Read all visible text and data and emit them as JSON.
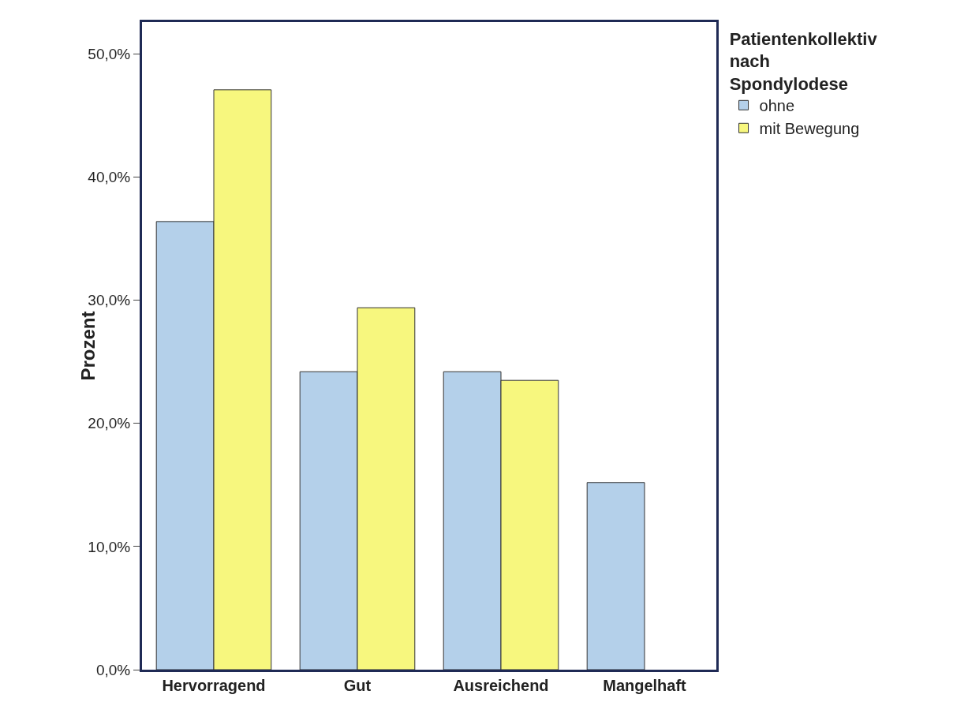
{
  "chart_data": {
    "type": "bar",
    "ylabel": "Prozent",
    "legend_title": "Patientenkollektiv nach Spondylodese",
    "categories": [
      "Hervorragend",
      "Gut",
      "Ausreichend",
      "Mangelhaft"
    ],
    "series": [
      {
        "name": "ohne",
        "color": "#b4d0ea",
        "values": [
          36.4,
          24.2,
          24.2,
          15.2
        ]
      },
      {
        "name": "mit Bewegung",
        "color": "#f7f77e",
        "values": [
          47.1,
          29.4,
          23.5,
          null
        ]
      }
    ],
    "ylim": [
      0,
      52.6
    ],
    "yticks": [
      {
        "value": 0,
        "label": "0,0%"
      },
      {
        "value": 10,
        "label": "10,0%"
      },
      {
        "value": 20,
        "label": "20,0%"
      },
      {
        "value": 30,
        "label": "30,0%"
      },
      {
        "value": 40,
        "label": "40,0%"
      },
      {
        "value": 50,
        "label": "50,0%"
      }
    ],
    "grid": false,
    "legend": "top right"
  }
}
